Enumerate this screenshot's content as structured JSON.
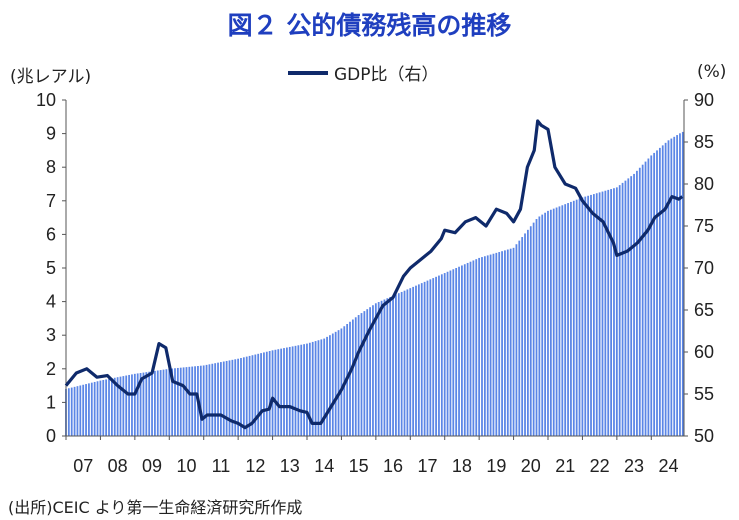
{
  "title": "図２ 公的債務残高の推移",
  "left_unit": "(兆レアル)",
  "right_unit": "(%)",
  "source": "(出所)CEIC より第一生命経済研究所作成",
  "colors": {
    "bars": "#5b86e6",
    "line": "#0f2a6b",
    "title": "#1f3fbf"
  },
  "chart_data": {
    "type": "bar+line",
    "x_tick_labels": [
      "07",
      "08",
      "09",
      "10",
      "11",
      "12",
      "13",
      "14",
      "15",
      "16",
      "17",
      "18",
      "19",
      "20",
      "21",
      "22",
      "23",
      "24"
    ],
    "y_left": {
      "ticks": [
        "0",
        "1",
        "2",
        "3",
        "4",
        "5",
        "6",
        "7",
        "8",
        "9",
        "10"
      ],
      "range": [
        0,
        10
      ]
    },
    "y_right": {
      "ticks": [
        "50",
        "55",
        "60",
        "65",
        "70",
        "75",
        "80",
        "85",
        "90"
      ],
      "range": [
        50,
        90
      ]
    },
    "series": [
      {
        "type": "bar",
        "axis": "left",
        "x_start": 2007.0,
        "x_end": 2024.9,
        "points": [
          [
            2007.0,
            1.4
          ],
          [
            2008.0,
            1.65
          ],
          [
            2009.0,
            1.85
          ],
          [
            2010.0,
            2.0
          ],
          [
            2011.0,
            2.1
          ],
          [
            2012.0,
            2.3
          ],
          [
            2013.0,
            2.55
          ],
          [
            2014.0,
            2.75
          ],
          [
            2014.5,
            2.9
          ],
          [
            2015.0,
            3.2
          ],
          [
            2015.5,
            3.6
          ],
          [
            2016.0,
            3.95
          ],
          [
            2017.0,
            4.4
          ],
          [
            2018.0,
            4.85
          ],
          [
            2019.0,
            5.3
          ],
          [
            2020.0,
            5.6
          ],
          [
            2020.7,
            6.5
          ],
          [
            2021.0,
            6.7
          ],
          [
            2022.0,
            7.1
          ],
          [
            2023.0,
            7.4
          ],
          [
            2023.5,
            7.8
          ],
          [
            2024.0,
            8.35
          ],
          [
            2024.5,
            8.8
          ],
          [
            2024.9,
            9.05
          ]
        ]
      },
      {
        "name": "GDP比（右）",
        "type": "line",
        "axis": "right",
        "points": [
          [
            2007.0,
            56.0
          ],
          [
            2007.3,
            57.5
          ],
          [
            2007.6,
            58.0
          ],
          [
            2007.9,
            57.0
          ],
          [
            2008.2,
            57.2
          ],
          [
            2008.5,
            56.0
          ],
          [
            2008.8,
            55.0
          ],
          [
            2009.0,
            55.0
          ],
          [
            2009.2,
            56.8
          ],
          [
            2009.5,
            57.5
          ],
          [
            2009.7,
            61.0
          ],
          [
            2009.9,
            60.5
          ],
          [
            2010.1,
            56.5
          ],
          [
            2010.4,
            56.0
          ],
          [
            2010.6,
            55.0
          ],
          [
            2010.8,
            55.0
          ],
          [
            2010.95,
            52.0
          ],
          [
            2011.1,
            52.5
          ],
          [
            2011.5,
            52.5
          ],
          [
            2011.8,
            51.8
          ],
          [
            2012.0,
            51.5
          ],
          [
            2012.2,
            51.0
          ],
          [
            2012.4,
            51.5
          ],
          [
            2012.7,
            53.0
          ],
          [
            2012.9,
            53.2
          ],
          [
            2013.0,
            54.5
          ],
          [
            2013.2,
            53.5
          ],
          [
            2013.5,
            53.5
          ],
          [
            2013.8,
            53.0
          ],
          [
            2014.0,
            52.8
          ],
          [
            2014.15,
            51.5
          ],
          [
            2014.4,
            51.5
          ],
          [
            2014.7,
            53.5
          ],
          [
            2015.0,
            55.5
          ],
          [
            2015.3,
            58.0
          ],
          [
            2015.5,
            60.0
          ],
          [
            2015.8,
            62.5
          ],
          [
            2016.0,
            64.0
          ],
          [
            2016.2,
            65.5
          ],
          [
            2016.5,
            66.5
          ],
          [
            2016.8,
            69.0
          ],
          [
            2017.0,
            70.0
          ],
          [
            2017.3,
            71.0
          ],
          [
            2017.6,
            72.0
          ],
          [
            2017.9,
            73.5
          ],
          [
            2018.0,
            74.5
          ],
          [
            2018.3,
            74.2
          ],
          [
            2018.6,
            75.5
          ],
          [
            2018.9,
            76.0
          ],
          [
            2019.2,
            75.0
          ],
          [
            2019.5,
            77.0
          ],
          [
            2019.8,
            76.5
          ],
          [
            2020.0,
            75.5
          ],
          [
            2020.2,
            77.0
          ],
          [
            2020.4,
            82.0
          ],
          [
            2020.6,
            84.0
          ],
          [
            2020.7,
            87.5
          ],
          [
            2020.8,
            87.0
          ],
          [
            2021.0,
            86.5
          ],
          [
            2021.2,
            82.0
          ],
          [
            2021.5,
            80.0
          ],
          [
            2021.8,
            79.5
          ],
          [
            2022.0,
            78.0
          ],
          [
            2022.3,
            76.5
          ],
          [
            2022.6,
            75.5
          ],
          [
            2022.9,
            73.0
          ],
          [
            2023.0,
            71.5
          ],
          [
            2023.3,
            72.0
          ],
          [
            2023.6,
            73.0
          ],
          [
            2023.9,
            74.5
          ],
          [
            2024.1,
            76.0
          ],
          [
            2024.4,
            77.0
          ],
          [
            2024.6,
            78.5
          ],
          [
            2024.8,
            78.2
          ],
          [
            2024.9,
            78.5
          ]
        ]
      }
    ],
    "legend": {
      "position": "top-center"
    },
    "grid": false
  }
}
